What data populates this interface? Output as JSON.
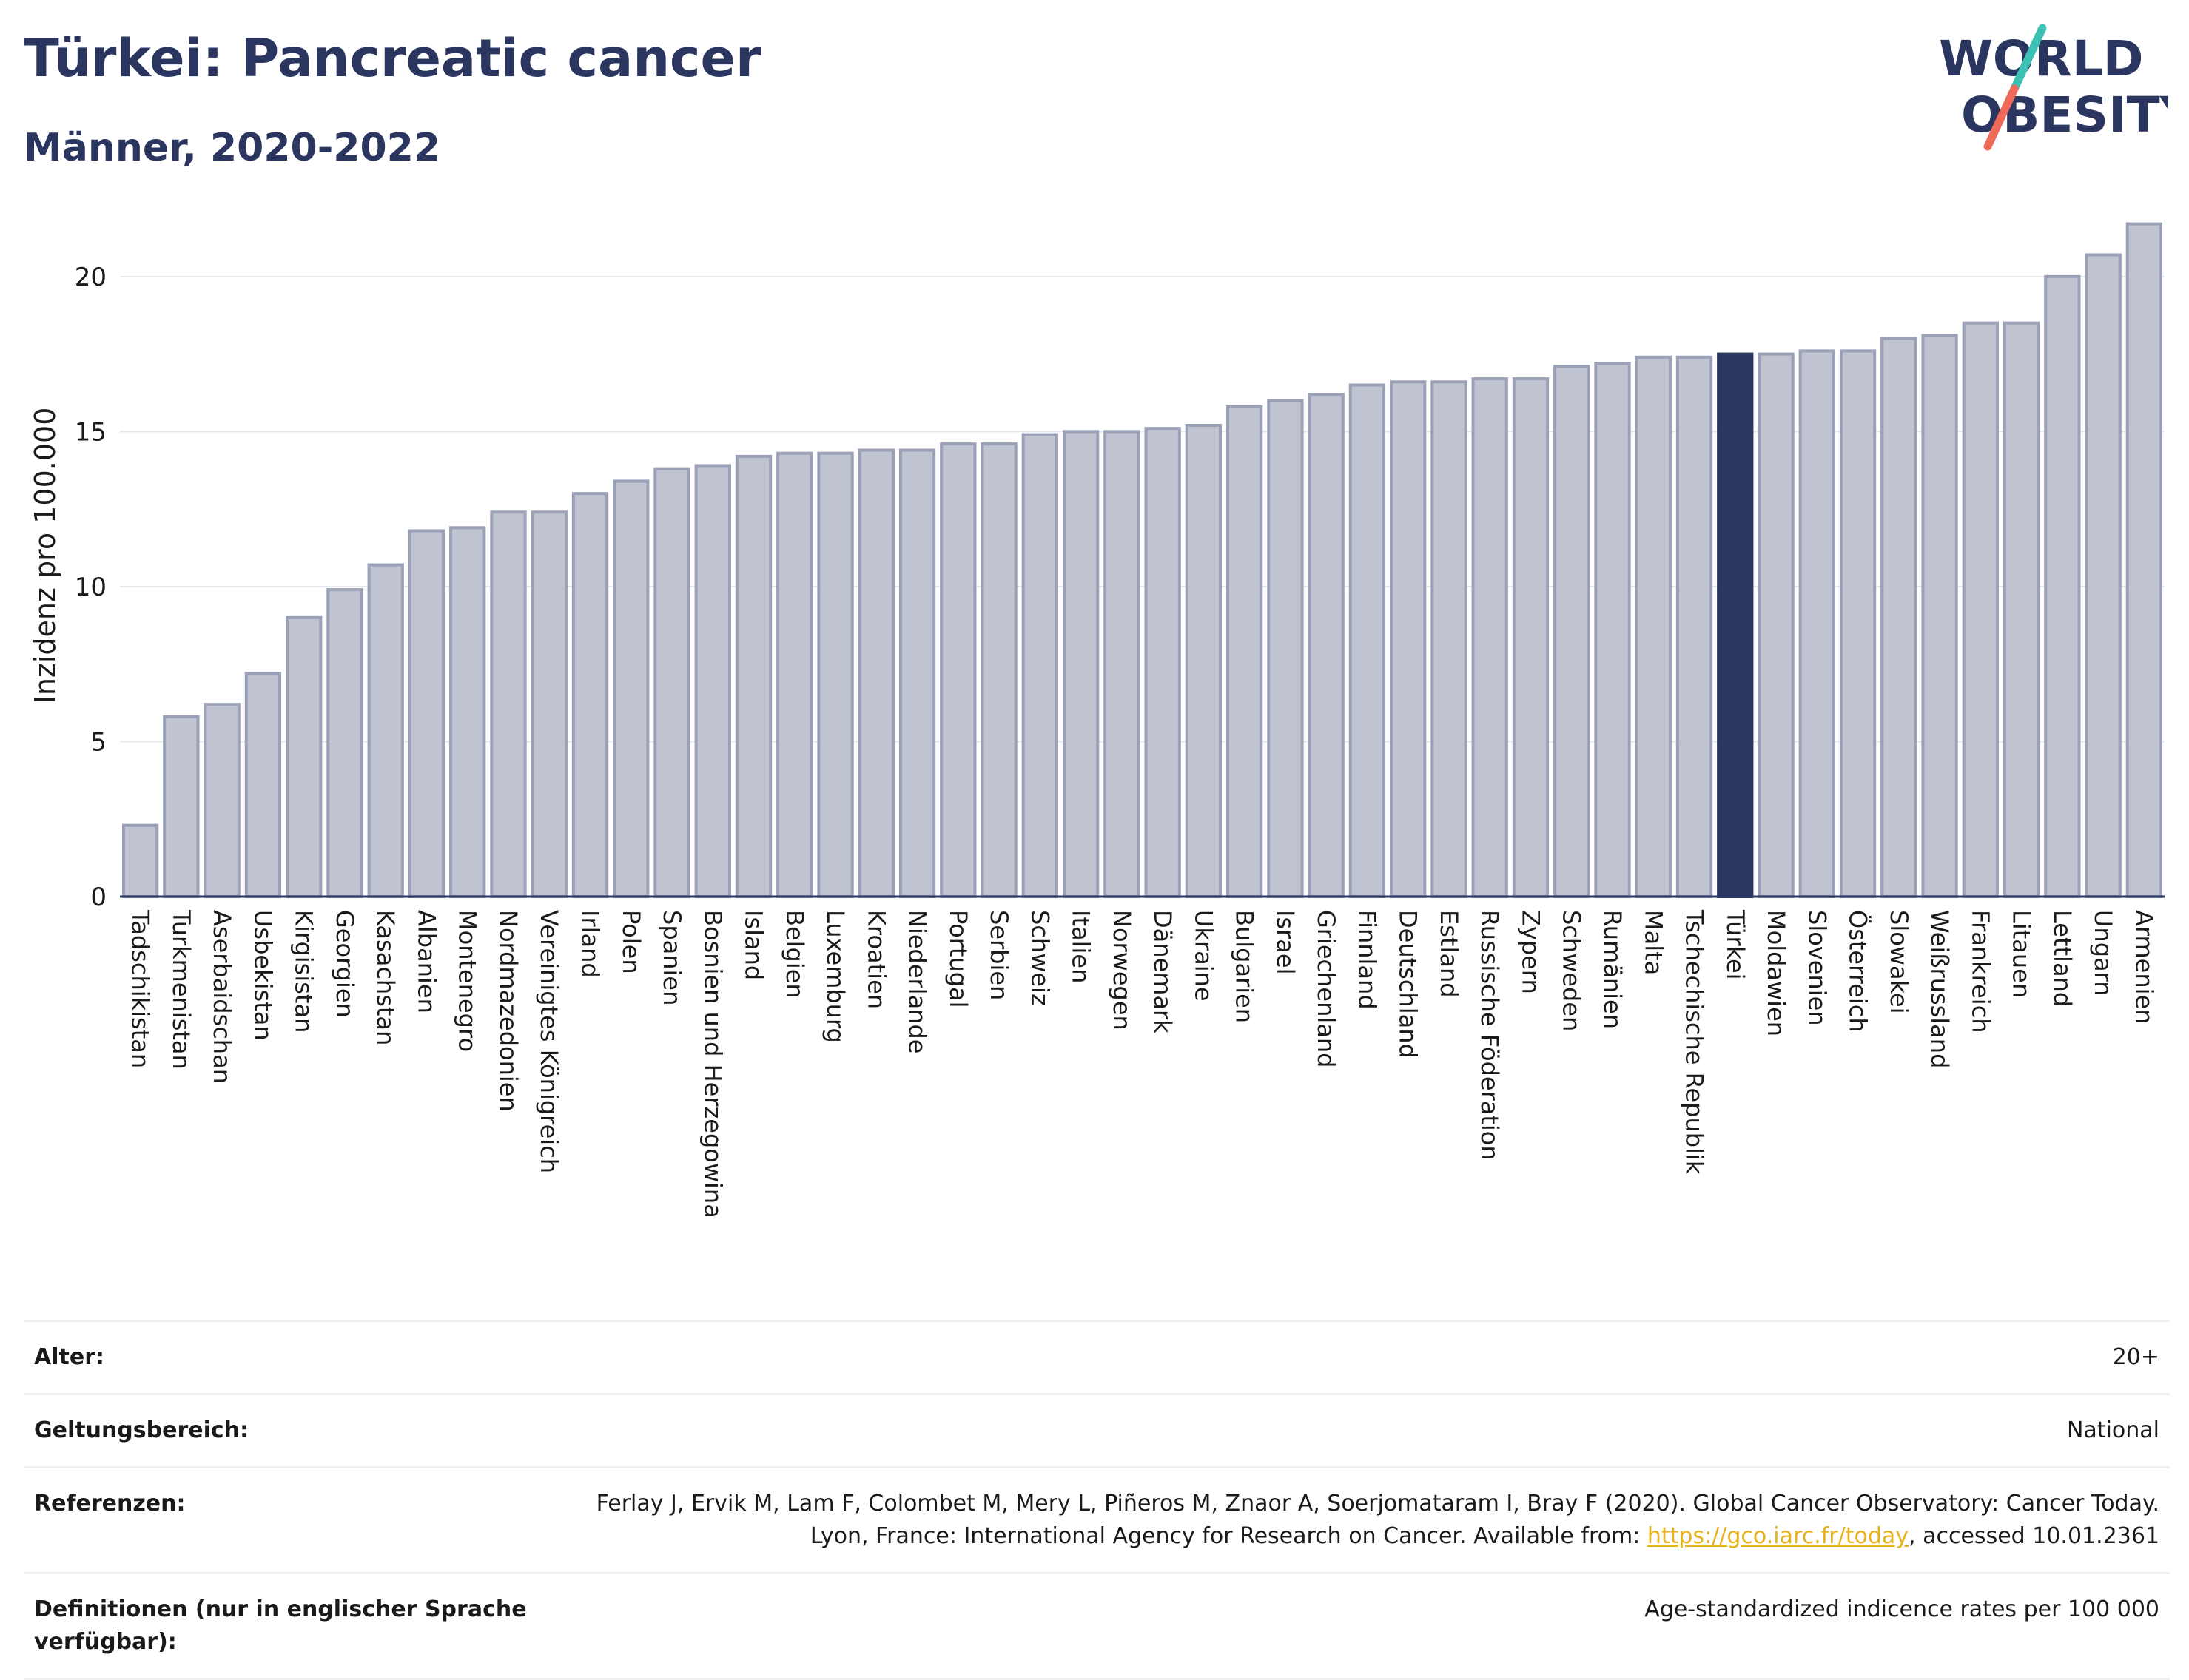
{
  "header": {
    "title": "Türkei: Pancreatic cancer",
    "subtitle": "Männer, 2020-2022"
  },
  "logo": {
    "line1": "WORLD",
    "line2": "OBESITY",
    "text_color": "#2a3560",
    "slash_colors": [
      "#3cc1b4",
      "#f06a5a"
    ]
  },
  "colors": {
    "bar": "#c0c4d1",
    "bar_stroke": "#9aa0b5",
    "highlight": "#2a3560",
    "grid": "#e6e8ee"
  },
  "chart_data": {
    "type": "bar",
    "ylabel": "Inzidenz pro 100.000",
    "ylim": [
      0,
      22
    ],
    "yticks": [
      0,
      5,
      10,
      15,
      20
    ],
    "highlight": "Türkei",
    "categories": [
      "Tadschikistan",
      "Turkmenistan",
      "Aserbaidschan",
      "Usbekistan",
      "Kirgisistan",
      "Georgien",
      "Kasachstan",
      "Albanien",
      "Montenegro",
      "Nordmazedonien",
      "Vereinigtes Königreich",
      "Irland",
      "Polen",
      "Spanien",
      "Bosnien und Herzegowina",
      "Island",
      "Belgien",
      "Luxemburg",
      "Kroatien",
      "Niederlande",
      "Portugal",
      "Serbien",
      "Schweiz",
      "Italien",
      "Norwegen",
      "Dänemark",
      "Ukraine",
      "Bulgarien",
      "Israel",
      "Griechenland",
      "Finnland",
      "Deutschland",
      "Estland",
      "Russische Föderation",
      "Zypern",
      "Schweden",
      "Rumänien",
      "Malta",
      "Tschechische Republik",
      "Türkei",
      "Moldawien",
      "Slovenien",
      "Österreich",
      "Slowakei",
      "Weißrussland",
      "Frankreich",
      "Litauen",
      "Lettland",
      "Ungarn",
      "Armenien"
    ],
    "values": [
      2.3,
      5.8,
      6.2,
      7.2,
      9.0,
      9.9,
      10.7,
      11.8,
      11.9,
      12.4,
      12.4,
      13.0,
      13.4,
      13.8,
      13.9,
      14.2,
      14.3,
      14.3,
      14.4,
      14.4,
      14.6,
      14.6,
      14.9,
      15.0,
      15.0,
      15.1,
      15.2,
      15.8,
      16.0,
      16.2,
      16.5,
      16.6,
      16.6,
      16.7,
      16.7,
      17.1,
      17.2,
      17.4,
      17.4,
      17.5,
      17.5,
      17.6,
      17.6,
      18.0,
      18.1,
      18.5,
      18.5,
      20.0,
      20.7,
      21.7
    ]
  },
  "meta": [
    {
      "key": "Alter:",
      "value": "20+"
    },
    {
      "key": "Geltungsbereich:",
      "value": "National"
    },
    {
      "key": "Referenzen:",
      "value_before": "Ferlay J, Ervik M, Lam F, Colombet M, Mery L, Piñeros M, Znaor A, Soerjomataram I, Bray F (2020). Global Cancer Observatory: Cancer Today. Lyon, France: International Agency for Research on Cancer. Available from: ",
      "link": "https://gco.iarc.fr/today",
      "value_after": ", accessed 10.01.2361"
    },
    {
      "key": "Definitionen (nur in englischer Sprache verfügbar):",
      "value": "Age-standardized indicence rates per 100 000"
    }
  ]
}
